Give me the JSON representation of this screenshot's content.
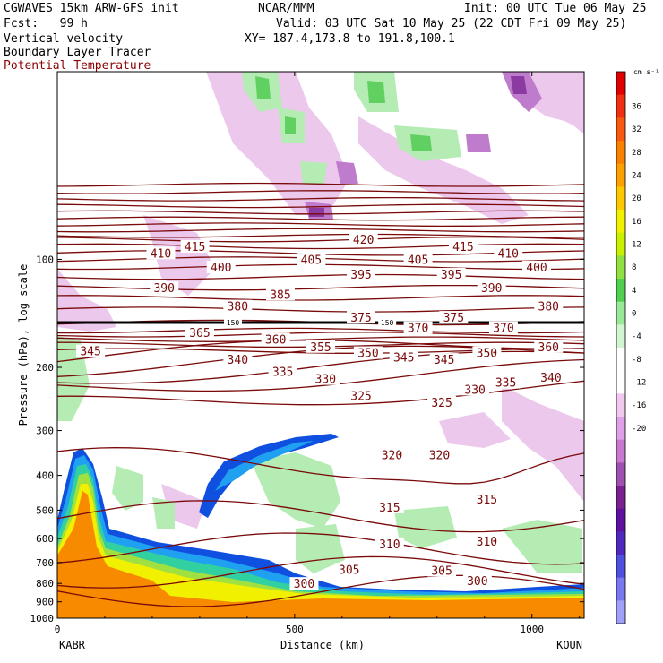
{
  "header": {
    "model": "CGWAVES 15km ARW-GFS init",
    "center": "NCAR/MMM",
    "init": "Init: 00 UTC Tue 06 May 25",
    "fcst": "Fcst:   99 h",
    "valid": "Valid: 03 UTC Sat 10 May 25 (22 CDT Fri 09 May 25)",
    "xy": "XY= 187.4,173.8 to 191.8,100.1",
    "field1": "Vertical velocity",
    "field2": "Boundary Layer Tracer",
    "field3": "Potential Temperature"
  },
  "colors": {
    "theta_contour": "#7a0a0a",
    "tropopause_line": "#000000",
    "text_red": "#8b0000"
  },
  "chart_data": {
    "type": "heatmap",
    "title": "",
    "xlabel": "Distance (km)",
    "ylabel": "Pressure (hPa), log scale",
    "xlim": [
      0,
      1110
    ],
    "ylim": [
      1000,
      30
    ],
    "y_scale": "log",
    "x_ticks": [
      0,
      500,
      1000
    ],
    "y_ticks": [
      100,
      200,
      300,
      400,
      500,
      600,
      700,
      800,
      900,
      1000
    ],
    "endpoints": {
      "left": "KABR",
      "right": "KOUN"
    },
    "colorbar": {
      "unit": "cm s⁻¹",
      "ticks": [
        36,
        32,
        28,
        24,
        20,
        16,
        12,
        8,
        4,
        0,
        -4,
        -8,
        -12,
        -16,
        -20
      ],
      "colors": [
        "#e00000",
        "#f03010",
        "#f85a10",
        "#fa8000",
        "#fca000",
        "#fcc800",
        "#f0f000",
        "#c8f000",
        "#90e040",
        "#50d050",
        "#98e898",
        "#d0f5d0",
        "#ffffff",
        "#ffffff",
        "#f0c8f0",
        "#e0a0e8",
        "#c878d0",
        "#a050b0",
        "#7a2090",
        "#6010a0",
        "#5028c0",
        "#5050e0",
        "#7878f0",
        "#a0a0f8"
      ]
    },
    "series": [
      {
        "name": "Potential Temperature",
        "type": "contour",
        "labels": [
          {
            "v": 420,
            "x": 645,
            "p": 88
          },
          {
            "v": 415,
            "x": 290,
            "p": 92
          },
          {
            "v": 415,
            "x": 855,
            "p": 92
          },
          {
            "v": 410,
            "x": 218,
            "p": 96
          },
          {
            "v": 410,
            "x": 950,
            "p": 96
          },
          {
            "v": 405,
            "x": 535,
            "p": 100
          },
          {
            "v": 405,
            "x": 760,
            "p": 100
          },
          {
            "v": 400,
            "x": 345,
            "p": 105
          },
          {
            "v": 400,
            "x": 1010,
            "p": 105
          },
          {
            "v": 395,
            "x": 640,
            "p": 110
          },
          {
            "v": 395,
            "x": 830,
            "p": 110
          },
          {
            "v": 390,
            "x": 225,
            "p": 120
          },
          {
            "v": 390,
            "x": 915,
            "p": 120
          },
          {
            "v": 385,
            "x": 470,
            "p": 125
          },
          {
            "v": 380,
            "x": 380,
            "p": 135
          },
          {
            "v": 380,
            "x": 1035,
            "p": 135
          },
          {
            "v": 375,
            "x": 640,
            "p": 145
          },
          {
            "v": 375,
            "x": 835,
            "p": 145
          },
          {
            "v": 370,
            "x": 760,
            "p": 155
          },
          {
            "v": 370,
            "x": 940,
            "p": 155
          },
          {
            "v": 365,
            "x": 300,
            "p": 160
          },
          {
            "v": 360,
            "x": 460,
            "p": 167
          },
          {
            "v": 360,
            "x": 1035,
            "p": 175
          },
          {
            "v": 355,
            "x": 555,
            "p": 175
          },
          {
            "v": 350,
            "x": 655,
            "p": 182
          },
          {
            "v": 350,
            "x": 905,
            "p": 182
          },
          {
            "v": 345,
            "x": 70,
            "p": 180
          },
          {
            "v": 345,
            "x": 730,
            "p": 187
          },
          {
            "v": 345,
            "x": 815,
            "p": 190
          },
          {
            "v": 340,
            "x": 380,
            "p": 190
          },
          {
            "v": 340,
            "x": 1040,
            "p": 213
          },
          {
            "v": 335,
            "x": 475,
            "p": 205
          },
          {
            "v": 335,
            "x": 945,
            "p": 220
          },
          {
            "v": 330,
            "x": 565,
            "p": 215
          },
          {
            "v": 330,
            "x": 880,
            "p": 230
          },
          {
            "v": 325,
            "x": 640,
            "p": 240
          },
          {
            "v": 325,
            "x": 810,
            "p": 250
          },
          {
            "v": 320,
            "x": 705,
            "p": 350
          },
          {
            "v": 320,
            "x": 805,
            "p": 350
          },
          {
            "v": 315,
            "x": 700,
            "p": 490
          },
          {
            "v": 315,
            "x": 905,
            "p": 465
          },
          {
            "v": 310,
            "x": 700,
            "p": 620
          },
          {
            "v": 310,
            "x": 905,
            "p": 610
          },
          {
            "v": 305,
            "x": 615,
            "p": 730
          },
          {
            "v": 305,
            "x": 810,
            "p": 735
          },
          {
            "v": 300,
            "x": 520,
            "p": 800
          },
          {
            "v": 300,
            "x": 885,
            "p": 785
          }
        ]
      },
      {
        "name": "Boundary Layer Tracer",
        "type": "filled"
      },
      {
        "name": "Vertical velocity",
        "type": "filled"
      }
    ],
    "tropopause_labels": [
      {
        "v": 150,
        "x": 370,
        "p": 150
      },
      {
        "v": 150,
        "x": 695,
        "p": 150
      }
    ]
  }
}
